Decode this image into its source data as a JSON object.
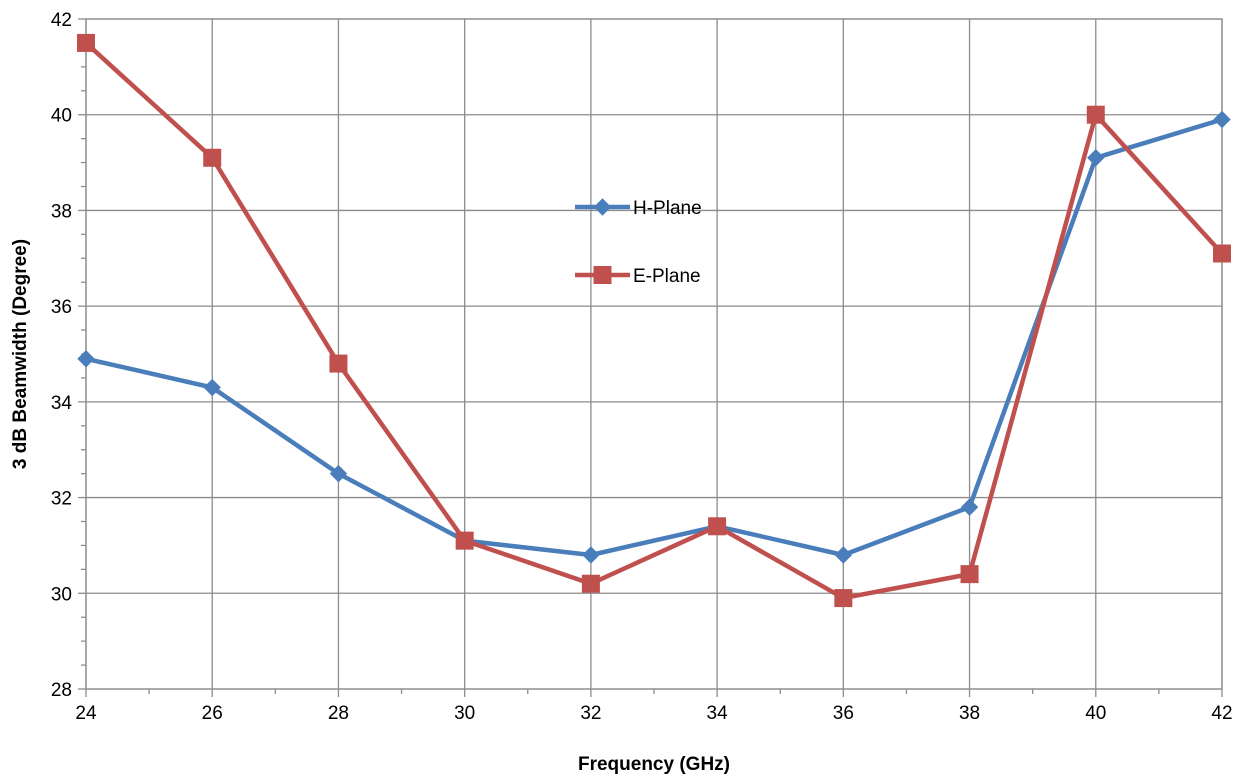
{
  "chart_data": {
    "type": "line",
    "title": "",
    "xlabel": "Frequency (GHz)",
    "ylabel": "3 dB Beamwidth (Degree)",
    "xlim": [
      24,
      42
    ],
    "ylim": [
      28,
      42
    ],
    "xticks": [
      24,
      26,
      28,
      30,
      32,
      34,
      36,
      38,
      40,
      42
    ],
    "yticks": [
      28,
      30,
      32,
      34,
      36,
      38,
      40,
      42
    ],
    "grid": true,
    "legend_position": "center",
    "x": [
      24,
      26,
      28,
      30,
      32,
      34,
      36,
      38,
      40,
      42
    ],
    "series": [
      {
        "name": "H-Plane",
        "color": "#4a7ebb",
        "marker": "diamond",
        "values": [
          34.9,
          34.3,
          32.5,
          31.1,
          30.8,
          31.4,
          30.8,
          31.8,
          39.1,
          39.9
        ]
      },
      {
        "name": "E-Plane",
        "color": "#c0504d",
        "marker": "square",
        "values": [
          41.5,
          39.1,
          34.8,
          31.1,
          30.2,
          31.4,
          29.9,
          30.4,
          40.0,
          37.1
        ]
      }
    ]
  }
}
